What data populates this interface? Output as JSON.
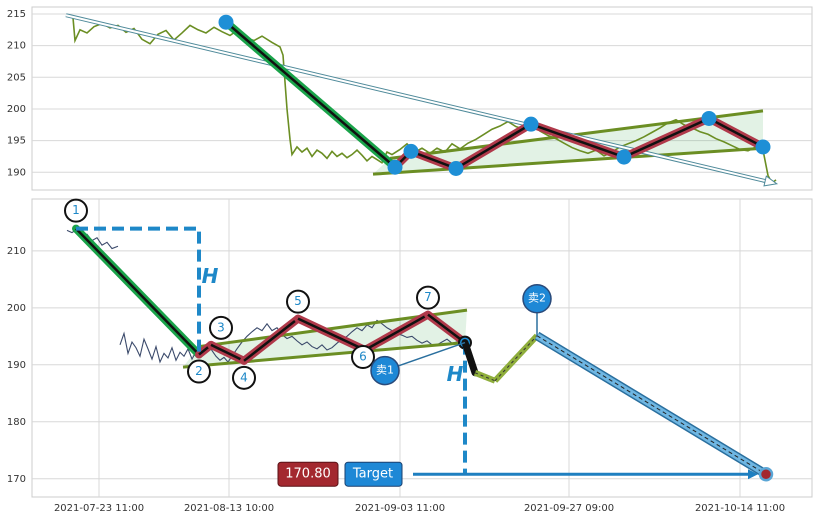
{
  "chart_data": [
    {
      "type": "line",
      "xlim": [
        0,
        780
      ],
      "ylim": [
        187.2,
        216.1
      ],
      "yticks": [
        190,
        195,
        200,
        205,
        210,
        215
      ],
      "grid": true,
      "series": [
        {
          "color": "#6b8e23",
          "x": [
            41,
            43,
            48,
            55,
            62,
            70,
            78,
            86,
            94,
            102,
            110,
            118,
            126,
            134,
            142,
            150,
            158,
            166,
            174,
            182,
            190,
            198,
            206,
            214,
            222,
            230,
            240,
            248,
            251,
            255,
            258,
            260,
            265,
            270,
            275,
            280,
            285,
            290,
            295,
            300,
            305,
            310,
            315,
            320,
            325,
            330,
            335,
            340,
            345,
            350,
            355,
            360,
            368,
            375,
            383,
            390,
            398,
            405,
            413,
            420,
            428,
            436,
            444,
            452,
            460,
            468,
            476,
            484,
            492,
            500,
            508,
            516,
            524,
            532,
            540,
            548,
            556,
            564,
            572,
            580,
            588,
            596,
            604,
            612,
            620,
            628,
            636,
            644,
            652,
            660,
            668,
            676,
            684,
            692,
            700,
            708,
            716,
            724,
            731,
            736,
            740,
            744
          ],
          "values": [
            214.4,
            210.8,
            212.5,
            212.0,
            213.0,
            213.5,
            212.8,
            213.2,
            212.1,
            212.7,
            211.0,
            210.3,
            211.8,
            212.4,
            210.9,
            212.0,
            213.2,
            212.5,
            212.0,
            212.9,
            212.2,
            211.6,
            212.5,
            211.2,
            210.8,
            211.5,
            210.5,
            209.8,
            208.5,
            200.0,
            195.2,
            192.8,
            194.0,
            193.2,
            193.8,
            192.5,
            193.5,
            193.0,
            192.2,
            193.3,
            192.5,
            193.0,
            192.3,
            192.8,
            193.5,
            192.7,
            191.8,
            192.5,
            192.0,
            191.5,
            193.2,
            192.8,
            193.6,
            194.5,
            193.2,
            193.8,
            193.0,
            193.8,
            193.2,
            194.5,
            193.7,
            194.6,
            195.2,
            196.0,
            196.8,
            197.3,
            198.0,
            197.2,
            196.8,
            197.6,
            196.5,
            195.8,
            195.3,
            194.6,
            193.9,
            193.4,
            193.0,
            193.5,
            192.6,
            193.2,
            194.0,
            194.5,
            195.0,
            195.6,
            196.3,
            197.0,
            197.8,
            198.3,
            197.5,
            197.0,
            196.4,
            196.0,
            195.3,
            194.8,
            194.2,
            193.6,
            193.4,
            194.0,
            193.5,
            189.5,
            188.3,
            188.8
          ]
        }
      ],
      "pattern": {
        "x": [
          194,
          363,
          379,
          424,
          499,
          592,
          677,
          731
        ],
        "values": [
          213.7,
          190.8,
          193.3,
          190.6,
          197.6,
          192.4,
          198.5,
          194.0
        ]
      },
      "trend_lines": [
        {
          "x": [
            358,
            731
          ],
          "values": [
            192.2,
            199.7
          ]
        },
        {
          "x": [
            341,
            731
          ],
          "values": [
            189.7,
            193.8
          ]
        }
      ],
      "arrow": {
        "x": [
          34,
          739
        ],
        "values": [
          214.8,
          188.4
        ]
      }
    },
    {
      "type": "line",
      "xlim": [
        0,
        780
      ],
      "ylim": [
        166.8,
        219.1
      ],
      "yticks": [
        170,
        180,
        190,
        200,
        210
      ],
      "grid": true,
      "xticks": [
        {
          "value": 67,
          "label": "2021-07-23 11:00"
        },
        {
          "value": 197,
          "label": "2021-08-13 10:00"
        },
        {
          "value": 368,
          "label": "2021-09-03 11:00"
        },
        {
          "value": 537,
          "label": "2021-09-27 09:00"
        },
        {
          "value": 708,
          "label": "2021-10-14 11:00"
        }
      ],
      "series": [
        {
          "color": "#3b4a6b",
          "x": [
            35,
            40,
            45,
            50,
            55,
            60,
            65,
            70,
            75,
            80,
            86,
            87,
            88,
            92,
            96,
            100,
            104,
            108,
            112,
            116,
            120,
            124,
            128,
            132,
            136,
            140,
            144,
            148,
            152,
            156,
            160,
            164,
            168,
            172,
            176,
            180,
            184,
            188,
            192,
            196,
            200,
            205,
            210,
            215,
            220,
            225,
            230,
            235,
            240,
            245,
            250,
            255,
            260,
            265,
            270,
            275,
            280,
            285,
            290,
            295,
            300,
            305,
            310,
            315,
            320,
            325,
            330,
            335,
            340,
            345,
            350,
            355,
            360,
            365,
            370,
            375,
            380,
            385,
            390,
            395,
            400,
            405,
            410,
            415,
            420,
            425,
            430
          ],
          "values": [
            213.6,
            213.2,
            213.8,
            212.6,
            212.9,
            211.8,
            212.3,
            211.0,
            211.5,
            210.4,
            210.8,
            null,
            193.5,
            195.5,
            192.0,
            194.0,
            193.0,
            191.5,
            194.5,
            192.8,
            191.0,
            193.2,
            190.5,
            192.0,
            191.2,
            193.0,
            190.8,
            192.2,
            191.5,
            192.8,
            191.0,
            192.3,
            191.8,
            193.0,
            193.8,
            192.5,
            191.5,
            190.8,
            191.3,
            190.5,
            191.5,
            192.8,
            194.0,
            195.0,
            195.8,
            196.5,
            196.0,
            197.2,
            196.0,
            196.5,
            195.3,
            194.6,
            195.0,
            194.2,
            193.5,
            194.0,
            193.2,
            192.8,
            193.5,
            192.6,
            193.0,
            193.8,
            194.5,
            195.0,
            195.8,
            196.5,
            196.0,
            197.0,
            196.5,
            197.8,
            197.2,
            196.5,
            196.0,
            195.5,
            195.2,
            194.8,
            195.0,
            194.3,
            193.8,
            194.2,
            193.5,
            193.5,
            194.0,
            194.5,
            193.8,
            194.0,
            193.5
          ]
        }
      ],
      "pattern": {
        "x": [
          44,
          167,
          179,
          212,
          266,
          333,
          396,
          433
        ],
        "values": [
          213.9,
          191.8,
          193.5,
          190.7,
          198.1,
          192.6,
          198.8,
          193.9
        ],
        "labels": [
          "1",
          "2",
          "3",
          "4",
          "5",
          "6",
          "7",
          null
        ]
      },
      "trend_lines": [
        {
          "x": [
            167,
            435
          ],
          "values": [
            193.2,
            199.6
          ]
        },
        {
          "x": [
            151,
            433
          ],
          "values": [
            189.6,
            193.9
          ]
        }
      ],
      "h_measure": [
        {
          "x": [
            44,
            167
          ],
          "values": [
            213.9,
            191.8
          ],
          "label": "H"
        },
        {
          "x": [
            433,
            433
          ],
          "values": [
            193.9,
            170.8
          ],
          "label": "H"
        }
      ],
      "projection": {
        "x": [
          433,
          443,
          463,
          505,
          734
        ],
        "values": [
          193.9,
          188.6,
          187.2,
          195.1,
          170.8
        ]
      },
      "signals": [
        {
          "label": "卖1",
          "x": 433,
          "value": 193.9
        },
        {
          "label": "卖2",
          "x": 505,
          "value": 195.1
        }
      ],
      "target": {
        "value": 170.8,
        "value_label": "170.80",
        "text": "Target",
        "x": 734
      }
    }
  ]
}
